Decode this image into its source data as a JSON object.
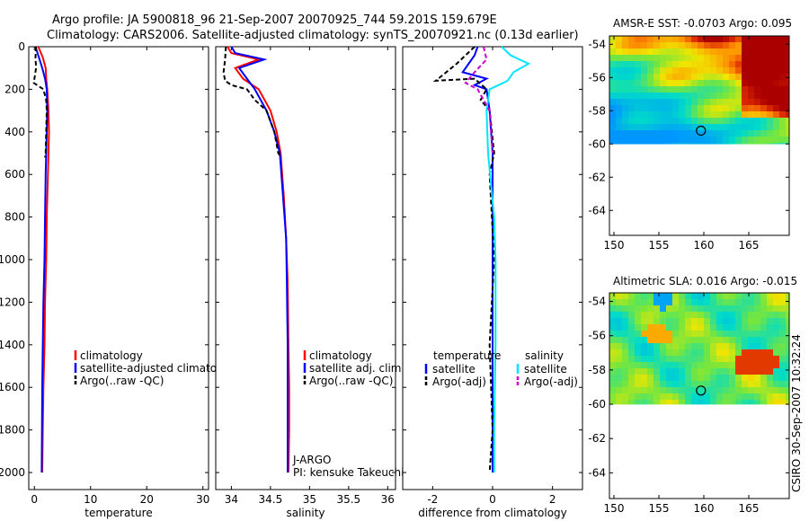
{
  "header": {
    "line1": "Argo profile: JA 5900818_96 21-Sep-2007 20070925_744 59.201S 159.679E",
    "line2": "Climatology: CARS2006. Satellite-adjusted climatology: synTS_20070921.nc (0.13d earlier)"
  },
  "side_label": "CSIRO 30-Sep-2007 10:32:24",
  "chart_data": [
    {
      "id": "temperature",
      "type": "line",
      "xlabel": "temperature",
      "xlim": [
        -1,
        31
      ],
      "ylim": [
        2080,
        0
      ],
      "xticks": [
        0,
        10,
        20,
        30
      ],
      "yticks": [
        0,
        200,
        400,
        600,
        800,
        1000,
        1200,
        1400,
        1600,
        1800,
        2000
      ],
      "legend": [
        "climatology",
        "satellite-adjusted climatology",
        "Argo(..raw -QC)"
      ],
      "series": [
        {
          "name": "climatology",
          "color": "#ff0000",
          "dash": "",
          "x": [
            0.7,
            1.5,
            2.0,
            2.1,
            2.3,
            2.5,
            2.6,
            2.5,
            2.4,
            2.2,
            2.1,
            1.9,
            1.8,
            1.6,
            1.5,
            1.4
          ],
          "y": [
            0,
            50,
            100,
            150,
            200,
            300,
            400,
            500,
            600,
            800,
            1000,
            1200,
            1400,
            1600,
            1800,
            2000
          ]
        },
        {
          "name": "satellite-adjusted climatology",
          "color": "#0000ff",
          "dash": "",
          "x": [
            0.2,
            0.8,
            1.4,
            1.9,
            2.2,
            2.3,
            2.2,
            2.1,
            2.0,
            1.9,
            1.8,
            1.6,
            1.5,
            1.4,
            1.3
          ],
          "y": [
            0,
            50,
            100,
            150,
            200,
            300,
            400,
            500,
            600,
            800,
            1000,
            1200,
            1400,
            1600,
            2000
          ]
        },
        {
          "name": "Argo(..raw -QC)",
          "color": "#000000",
          "dash": "5,3",
          "x": [
            0.3,
            0.2,
            0.3,
            0.0,
            -0.1,
            1.6,
            2.1,
            2.2,
            2.1,
            2.0,
            1.9
          ],
          "y": [
            0,
            50,
            100,
            150,
            170,
            200,
            250,
            300,
            400,
            500,
            520
          ]
        }
      ]
    },
    {
      "id": "salinity",
      "type": "line",
      "xlabel": "salinity",
      "xlim": [
        33.8,
        36.1
      ],
      "ylim": [
        2080,
        0
      ],
      "xticks": [
        34,
        34.5,
        35,
        35.5,
        36
      ],
      "yticks": [
        0,
        200,
        400,
        600,
        800,
        1000,
        1200,
        1400,
        1600,
        1800,
        2000
      ],
      "legend": [
        "climatology",
        "satellite adj. clim.",
        "Argo(..raw -QC)"
      ],
      "series": [
        {
          "name": "climatology",
          "color": "#ff0000",
          "dash": "",
          "x": [
            33.95,
            34.0,
            34.35,
            34.05,
            34.15,
            34.35,
            34.5,
            34.58,
            34.63,
            34.67,
            34.7,
            34.72,
            34.73,
            34.74,
            34.74,
            34.73
          ],
          "y": [
            0,
            30,
            60,
            100,
            150,
            200,
            300,
            400,
            500,
            700,
            900,
            1100,
            1400,
            1600,
            1800,
            2000
          ]
        },
        {
          "name": "satellite adj. clim.",
          "color": "#0000ff",
          "dash": "",
          "x": [
            34.0,
            34.05,
            34.42,
            34.1,
            34.2,
            34.3,
            34.45,
            34.55,
            34.62,
            34.66,
            34.7,
            34.71,
            34.72,
            34.72,
            34.72
          ],
          "y": [
            0,
            30,
            60,
            100,
            150,
            200,
            300,
            400,
            500,
            700,
            900,
            1100,
            1400,
            1700,
            2000
          ]
        },
        {
          "name": "Argo(..raw -QC)",
          "color": "#000000",
          "dash": "5,3",
          "x": [
            33.93,
            33.92,
            33.9,
            33.92,
            34.0,
            34.2,
            34.3,
            34.45,
            34.55,
            34.6,
            34.64
          ],
          "y": [
            0,
            60,
            120,
            160,
            180,
            200,
            250,
            300,
            400,
            500,
            520
          ]
        }
      ],
      "annotation": [
        "J-ARGO",
        "PI: kensuke Takeuchi"
      ]
    },
    {
      "id": "difference",
      "type": "line",
      "xlabel": "difference from climatology",
      "xlim": [
        -3,
        3
      ],
      "ylim": [
        2080,
        0
      ],
      "xticks": [
        -2,
        0,
        2
      ],
      "yticks": [
        0,
        200,
        400,
        600,
        800,
        1000,
        1200,
        1400,
        1600,
        1800,
        2000
      ],
      "legend_groups": [
        {
          "title": "temperature",
          "entries": [
            "satellite",
            "Argo(-adj)"
          ]
        },
        {
          "title": "salinity",
          "entries": [
            "satellite",
            "Argo(-adj)"
          ]
        }
      ],
      "series": [
        {
          "name": "temperature satellite",
          "color": "#0000ff",
          "dash": "",
          "x": [
            -0.5,
            -0.6,
            -0.8,
            -1.0,
            -0.2,
            -0.6,
            -0.2,
            -0.1,
            0.0,
            0.0,
            0.0,
            0.0,
            0.0
          ],
          "y": [
            0,
            40,
            80,
            120,
            150,
            180,
            200,
            300,
            500,
            800,
            1200,
            1600,
            2000
          ]
        },
        {
          "name": "temperature Argo(-adj)",
          "color": "#000000",
          "dash": "5,3",
          "x": [
            -0.6,
            -1.2,
            -1.9,
            -0.6,
            -0.2,
            -0.4,
            -0.1,
            0.05,
            -0.1,
            0.05,
            -0.1,
            0.0,
            -0.1
          ],
          "y": [
            0,
            80,
            160,
            150,
            200,
            250,
            300,
            500,
            600,
            1000,
            1400,
            1800,
            2000
          ]
        },
        {
          "name": "salinity satellite",
          "color": "#00e5ff",
          "dash": "",
          "x": [
            0.3,
            0.6,
            1.2,
            0.7,
            0.5,
            0.2,
            -0.1,
            -0.2,
            -0.15,
            0.05,
            0.1,
            0.1,
            0.05,
            0.05
          ],
          "y": [
            0,
            40,
            80,
            120,
            160,
            180,
            200,
            300,
            500,
            800,
            1000,
            1400,
            1800,
            2000
          ]
        },
        {
          "name": "salinity Argo(-adj)",
          "color": "#cc00cc",
          "dash": "5,3",
          "x": [
            -0.3,
            -0.2,
            -0.6,
            -0.9,
            -0.5,
            -0.3,
            -0.1,
            0.0
          ],
          "y": [
            0,
            60,
            120,
            170,
            200,
            250,
            300,
            500
          ]
        }
      ]
    },
    {
      "id": "sst_map",
      "type": "heatmap",
      "title": "AMSR-E SST: -0.0703 Argo: 0.095",
      "xlim": [
        149.5,
        169.5
      ],
      "ylim": [
        -65.5,
        -53.5
      ],
      "xticks": [
        150,
        155,
        160,
        165
      ],
      "yticks": [
        -54,
        -56,
        -58,
        -60,
        -62,
        -64
      ],
      "data_south_limit": -60,
      "marker": {
        "lon": 159.679,
        "lat": -59.201
      }
    },
    {
      "id": "sla_map",
      "type": "heatmap",
      "title": "Altimetric SLA: 0.016 Argo: -0.015",
      "xlim": [
        149.5,
        169.5
      ],
      "ylim": [
        -65.5,
        -53.5
      ],
      "xticks": [
        150,
        155,
        160,
        165
      ],
      "yticks": [
        -54,
        -56,
        -58,
        -60,
        -62,
        -64
      ],
      "data_south_limit": -60,
      "marker": {
        "lon": 159.679,
        "lat": -59.201
      }
    }
  ]
}
